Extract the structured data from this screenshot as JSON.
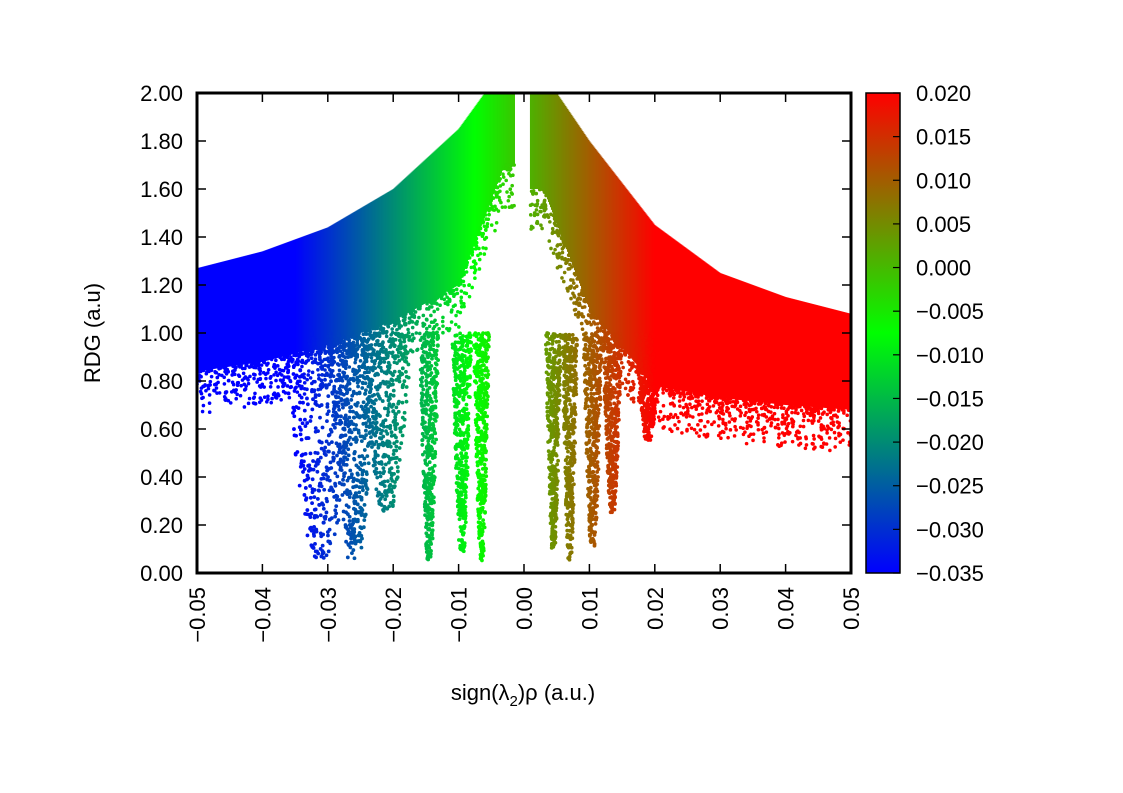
{
  "chart_data": {
    "type": "scatter",
    "xlabel": "sign(λ2)ρ (a.u.)",
    "xlabel_parts": {
      "prefix": "sign(λ",
      "subscript": "2",
      "suffix": ")ρ (a.u.)"
    },
    "ylabel": "RDG (a.u)",
    "xlim": [
      -0.05,
      0.05
    ],
    "ylim": [
      0.0,
      2.0
    ],
    "x_ticks": [
      "−0.05",
      "−0.04",
      "−0.03",
      "−0.02",
      "−0.01",
      "0.00",
      "0.01",
      "0.02",
      "0.03",
      "0.04",
      "0.05"
    ],
    "y_ticks": [
      "0.00",
      "0.20",
      "0.40",
      "0.60",
      "0.80",
      "1.00",
      "1.20",
      "1.40",
      "1.60",
      "1.80",
      "2.00"
    ],
    "colorbar": {
      "range": [
        -0.035,
        0.02
      ],
      "ticks": [
        "−0.035",
        "−0.030",
        "−0.025",
        "−0.020",
        "−0.015",
        "−0.010",
        "−0.005",
        "0.000",
        "0.005",
        "0.010",
        "0.015",
        "0.020"
      ],
      "colormap": [
        "#0000ff",
        "#00ff00",
        "#ff0000"
      ]
    },
    "series": [
      {
        "color_by": "x",
        "bands": [
          {
            "x_range": [
              -0.05,
              -0.0015
            ],
            "rdg_upper_at": [
              [
                -0.05,
                1.27
              ],
              [
                -0.04,
                1.34
              ],
              [
                -0.03,
                1.44
              ],
              [
                -0.02,
                1.6
              ],
              [
                -0.01,
                1.85
              ],
              [
                -0.006,
                2.0
              ]
            ],
            "rdg_lower_at": [
              [
                -0.05,
                0.84
              ],
              [
                -0.04,
                0.88
              ],
              [
                -0.03,
                0.95
              ],
              [
                -0.02,
                1.05
              ],
              [
                -0.01,
                1.2
              ],
              [
                -0.003,
                1.7
              ]
            ]
          },
          {
            "x_range": [
              0.001,
              0.05
            ],
            "rdg_upper_at": [
              [
                0.005,
                2.0
              ],
              [
                0.01,
                1.8
              ],
              [
                0.02,
                1.45
              ],
              [
                0.03,
                1.25
              ],
              [
                0.04,
                1.15
              ],
              [
                0.05,
                1.08
              ]
            ],
            "rdg_lower_at": [
              [
                0.003,
                1.6
              ],
              [
                0.01,
                1.1
              ],
              [
                0.02,
                0.78
              ],
              [
                0.03,
                0.73
              ],
              [
                0.04,
                0.7
              ],
              [
                0.05,
                0.68
              ]
            ]
          }
        ],
        "spikes": [
          {
            "x": -0.031,
            "min_rdg": 0.05,
            "spread": 0.006
          },
          {
            "x": -0.026,
            "min_rdg": 0.05,
            "spread": 0.004
          },
          {
            "x": -0.021,
            "min_rdg": 0.25,
            "spread": 0.004
          },
          {
            "x": -0.0145,
            "min_rdg": 0.05,
            "spread": 0.0015
          },
          {
            "x": -0.0095,
            "min_rdg": 0.08,
            "spread": 0.0015
          },
          {
            "x": -0.0065,
            "min_rdg": 0.05,
            "spread": 0.0012
          },
          {
            "x": 0.0045,
            "min_rdg": 0.1,
            "spread": 0.0012
          },
          {
            "x": 0.007,
            "min_rdg": 0.05,
            "spread": 0.0012
          },
          {
            "x": 0.0105,
            "min_rdg": 0.1,
            "spread": 0.0015
          },
          {
            "x": 0.0135,
            "min_rdg": 0.25,
            "spread": 0.0015
          },
          {
            "x": 0.019,
            "min_rdg": 0.55,
            "spread": 0.002
          }
        ]
      }
    ],
    "grid": false,
    "legend": "none"
  }
}
